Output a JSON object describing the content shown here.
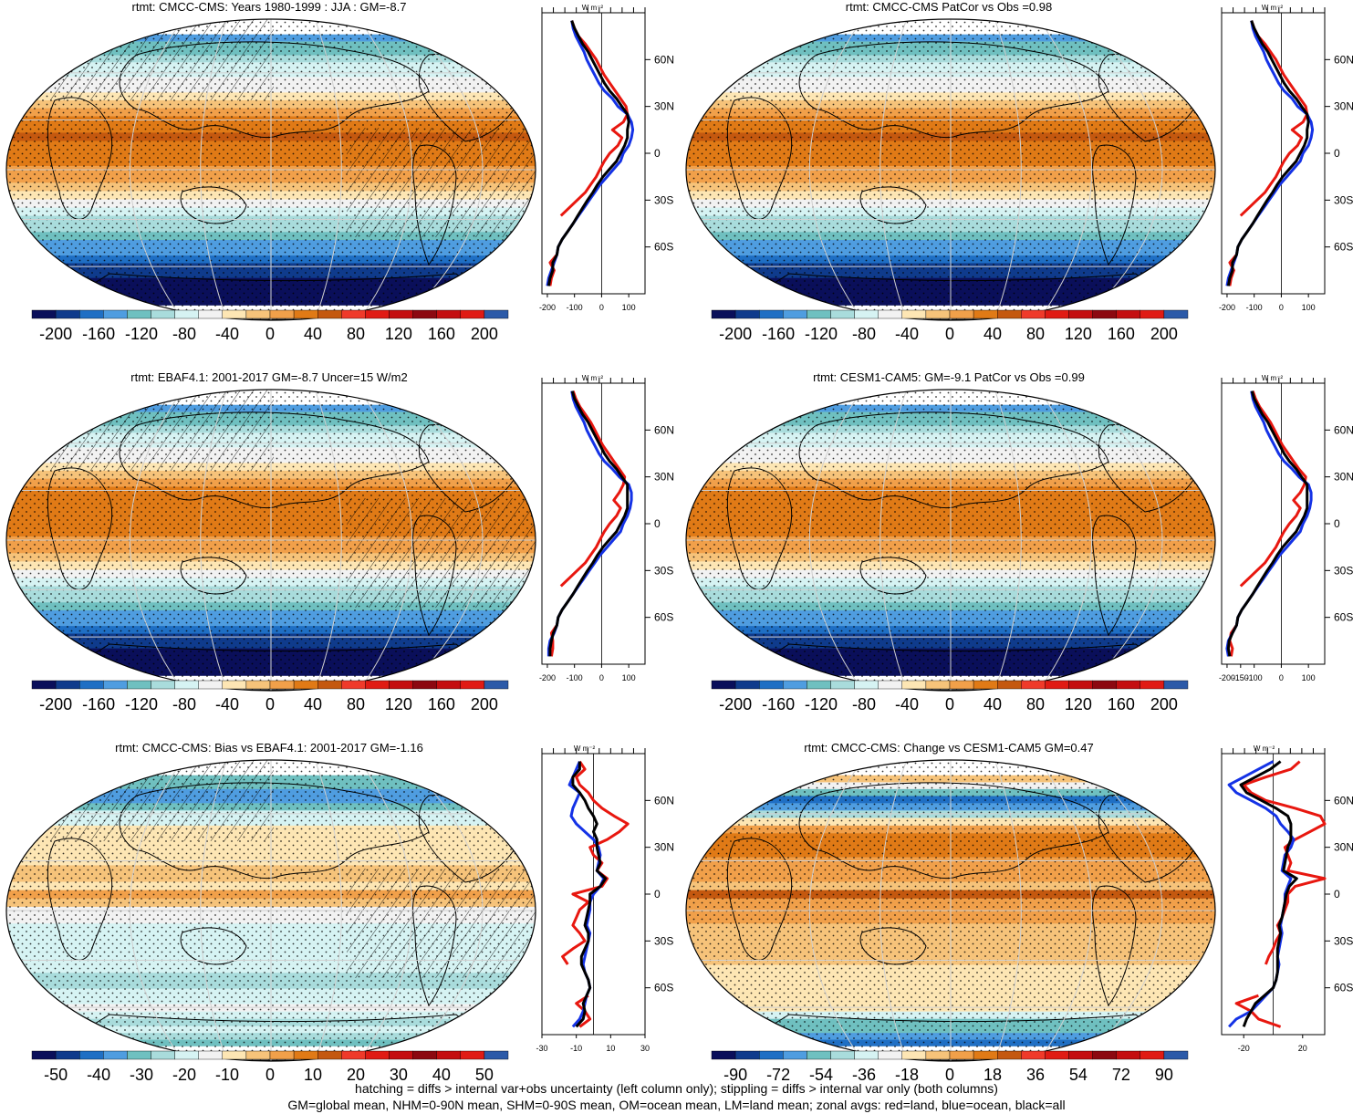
{
  "footer": {
    "line1": "hatching = diffs > internal var+obs uncertainty (left column only); stippling = diffs > internal var only (both columns)",
    "line2": "GM=global mean, NHM=0-90N mean, SHM=0-90S mean, OM=ocean mean, LM=land mean; zonal avgs: red=land, blue=ocean, black=all"
  },
  "colors": {
    "land": "#e8170f",
    "ocean": "#1432e6",
    "all": "#000000",
    "abs_scale": [
      "#0a0f5a",
      "#0f3b8c",
      "#1f6fc4",
      "#4f9de0",
      "#6fc0c0",
      "#a9dcdc",
      "#d6f3f3",
      "#f2f2f2",
      "#fde6b4",
      "#f6c37a",
      "#f1a04a",
      "#e07a16",
      "#c4580f",
      "#ef3a2a",
      "#e01b14",
      "#c40e10",
      "#8c0810",
      "#c40e10",
      "#e01b14",
      "#2c5aa8"
    ],
    "diff_scale": [
      "#0a0f5a",
      "#0f3b8c",
      "#1f6fc4",
      "#4f9de0",
      "#6fc0c0",
      "#a9dcdc",
      "#d6f3f3",
      "#f2f2f2",
      "#fde6b4",
      "#f6c37a",
      "#f1a04a",
      "#e07a16",
      "#c4580f",
      "#ef3a2a",
      "#e01b14",
      "#c40e10",
      "#8c0810",
      "#c40e10",
      "#e01b14",
      "#2c5aa8"
    ]
  },
  "profile": {
    "unit": "W m⁻²",
    "lat_labels": [
      "60N",
      "30N",
      "0",
      "30S",
      "60S"
    ],
    "lat_values": [
      60,
      30,
      0,
      -30,
      -60
    ]
  },
  "chart_data": [
    {
      "type": "heatmap",
      "title": "rtmt: CMCC-CMS: Years 1980-1999 : JJA : GM=-8.7",
      "colorbar_labels": [
        "-200",
        "-160",
        "-120",
        "-80",
        "-40",
        "0",
        "40",
        "80",
        "120",
        "160",
        "200"
      ],
      "profile_xticks": [
        "-200",
        "-100",
        "0",
        "100"
      ],
      "profile_xvals": [
        -200,
        -100,
        0,
        100
      ],
      "profile_xlim": [
        -220,
        160
      ],
      "hatching": true,
      "lat": [
        -85,
        -80,
        -75,
        -70,
        -65,
        -60,
        -55,
        -50,
        -45,
        -40,
        -35,
        -30,
        -25,
        -20,
        -15,
        -10,
        -5,
        0,
        5,
        10,
        15,
        20,
        25,
        30,
        35,
        40,
        45,
        50,
        55,
        60,
        65,
        70,
        75,
        80,
        85
      ],
      "series": [
        {
          "name": "land",
          "values": [
            -190,
            -185,
            -175,
            -190,
            -165,
            null,
            null,
            null,
            null,
            -150,
            -120,
            -90,
            -60,
            -40,
            -20,
            -5,
            10,
            30,
            60,
            75,
            40,
            80,
            95,
            90,
            70,
            50,
            30,
            10,
            -5,
            -20,
            -40,
            -60,
            -85,
            -100,
            -110
          ]
        },
        {
          "name": "ocean",
          "values": [
            -200,
            -195,
            -185,
            -175,
            -165,
            -160,
            -145,
            -125,
            -105,
            -85,
            -65,
            -45,
            -25,
            -5,
            20,
            45,
            70,
            80,
            100,
            110,
            115,
            110,
            95,
            60,
            40,
            10,
            -10,
            -25,
            -40,
            -55,
            -65,
            -80,
            -95,
            -105,
            -110
          ]
        },
        {
          "name": "all",
          "values": [
            -195,
            -190,
            -180,
            -180,
            -165,
            -160,
            -145,
            -125,
            -105,
            -88,
            -70,
            -52,
            -32,
            -15,
            5,
            30,
            55,
            70,
            85,
            95,
            95,
            100,
            95,
            75,
            55,
            30,
            10,
            -5,
            -20,
            -35,
            -50,
            -70,
            -85,
            -100,
            -110
          ]
        }
      ]
    },
    {
      "type": "heatmap",
      "title": "rtmt: CMCC-CMS PatCor vs Obs =0.98",
      "colorbar_labels": [
        "-200",
        "-160",
        "-120",
        "-80",
        "-40",
        "0",
        "40",
        "80",
        "120",
        "160",
        "200"
      ],
      "profile_xticks": [
        "-200",
        "-100",
        "0",
        "100"
      ],
      "profile_xvals": [
        -200,
        -100,
        0,
        100
      ],
      "profile_xlim": [
        -220,
        160
      ],
      "hatching": false,
      "lat": [
        -85,
        -80,
        -75,
        -70,
        -65,
        -60,
        -55,
        -50,
        -45,
        -40,
        -35,
        -30,
        -25,
        -20,
        -15,
        -10,
        -5,
        0,
        5,
        10,
        15,
        20,
        25,
        30,
        35,
        40,
        45,
        50,
        55,
        60,
        65,
        70,
        75,
        80,
        85
      ],
      "series": [
        {
          "name": "land",
          "values": [
            -190,
            -185,
            -175,
            -190,
            -165,
            null,
            null,
            null,
            null,
            -150,
            -120,
            -90,
            -60,
            -40,
            -20,
            -5,
            10,
            30,
            60,
            75,
            40,
            80,
            95,
            90,
            70,
            50,
            30,
            10,
            -5,
            -20,
            -40,
            -60,
            -85,
            -100,
            -110
          ]
        },
        {
          "name": "ocean",
          "values": [
            -200,
            -195,
            -185,
            -175,
            -165,
            -160,
            -145,
            -125,
            -105,
            -85,
            -65,
            -45,
            -25,
            -5,
            20,
            45,
            70,
            80,
            100,
            110,
            115,
            110,
            95,
            60,
            40,
            10,
            -10,
            -25,
            -40,
            -55,
            -65,
            -80,
            -95,
            -105,
            -110
          ]
        },
        {
          "name": "all",
          "values": [
            -195,
            -190,
            -180,
            -180,
            -165,
            -160,
            -145,
            -125,
            -105,
            -88,
            -70,
            -52,
            -32,
            -15,
            5,
            30,
            55,
            70,
            85,
            95,
            95,
            100,
            95,
            75,
            55,
            30,
            10,
            -5,
            -20,
            -35,
            -50,
            -70,
            -85,
            -100,
            -110
          ]
        }
      ]
    },
    {
      "type": "heatmap",
      "title": "rtmt: EBAF4.1: 2001-2017 GM=-8.7 Uncer=15 W/m2",
      "colorbar_labels": [
        "-200",
        "-160",
        "-120",
        "-80",
        "-40",
        "0",
        "40",
        "80",
        "120",
        "160",
        "200"
      ],
      "profile_xticks": [
        "-200",
        "-100",
        "0",
        "100"
      ],
      "profile_xvals": [
        -200,
        -100,
        0,
        100
      ],
      "profile_xlim": [
        -220,
        160
      ],
      "hatching": true,
      "lat": [
        -85,
        -80,
        -75,
        -70,
        -65,
        -60,
        -55,
        -50,
        -45,
        -40,
        -35,
        -30,
        -25,
        -20,
        -15,
        -10,
        -5,
        0,
        5,
        10,
        15,
        20,
        25,
        30,
        35,
        40,
        45,
        50,
        55,
        60,
        65,
        70,
        75,
        80,
        85
      ],
      "series": [
        {
          "name": "land",
          "values": [
            -185,
            -180,
            -180,
            -185,
            -165,
            null,
            null,
            null,
            null,
            -150,
            -120,
            -90,
            -60,
            -40,
            -20,
            -5,
            10,
            30,
            55,
            70,
            45,
            65,
            80,
            85,
            65,
            45,
            25,
            5,
            -10,
            -25,
            -40,
            -60,
            -80,
            -95,
            -105
          ]
        },
        {
          "name": "ocean",
          "values": [
            -195,
            -195,
            -190,
            -175,
            -165,
            -160,
            -145,
            -125,
            -105,
            -85,
            -65,
            -45,
            -25,
            -5,
            20,
            45,
            70,
            80,
            95,
            105,
            110,
            110,
            100,
            65,
            40,
            10,
            -10,
            -25,
            -40,
            -55,
            -65,
            -80,
            -95,
            -105,
            -110
          ]
        },
        {
          "name": "all",
          "values": [
            -190,
            -190,
            -185,
            -178,
            -165,
            -160,
            -145,
            -125,
            -105,
            -88,
            -70,
            -52,
            -32,
            -15,
            5,
            30,
            55,
            70,
            85,
            95,
            95,
            95,
            95,
            75,
            55,
            30,
            10,
            -5,
            -20,
            -35,
            -50,
            -70,
            -85,
            -100,
            -108
          ]
        }
      ]
    },
    {
      "type": "heatmap",
      "title": "rtmt: CESM1-CAM5: GM=-9.1 PatCor vs Obs =0.99",
      "colorbar_labels": [
        "-200",
        "-160",
        "-120",
        "-80",
        "-40",
        "0",
        "40",
        "80",
        "120",
        "160",
        "200"
      ],
      "profile_xticks": [
        "-200",
        "-150",
        "-100",
        "0",
        "100"
      ],
      "profile_xvals": [
        -200,
        -150,
        -100,
        0,
        100
      ],
      "profile_xlim": [
        -220,
        160
      ],
      "hatching": false,
      "lat": [
        -85,
        -80,
        -75,
        -70,
        -65,
        -60,
        -55,
        -50,
        -45,
        -40,
        -35,
        -30,
        -25,
        -20,
        -15,
        -10,
        -5,
        0,
        5,
        10,
        15,
        20,
        25,
        30,
        35,
        40,
        45,
        50,
        55,
        60,
        65,
        70,
        75,
        80,
        85
      ],
      "series": [
        {
          "name": "land",
          "values": [
            -185,
            -180,
            -190,
            -185,
            -165,
            null,
            null,
            null,
            null,
            -150,
            -120,
            -90,
            -60,
            -40,
            -20,
            -5,
            10,
            30,
            55,
            70,
            45,
            70,
            85,
            90,
            65,
            45,
            25,
            5,
            -10,
            -25,
            -40,
            -60,
            -80,
            -95,
            -105
          ]
        },
        {
          "name": "ocean",
          "values": [
            -195,
            -200,
            -195,
            -180,
            -165,
            -160,
            -145,
            -125,
            -105,
            -85,
            -65,
            -45,
            -25,
            -5,
            20,
            45,
            70,
            80,
            95,
            105,
            110,
            110,
            100,
            65,
            40,
            10,
            -10,
            -25,
            -40,
            -55,
            -65,
            -80,
            -95,
            -105,
            -110
          ]
        },
        {
          "name": "all",
          "values": [
            -190,
            -195,
            -192,
            -180,
            -165,
            -160,
            -145,
            -125,
            -105,
            -88,
            -70,
            -52,
            -32,
            -15,
            5,
            30,
            55,
            70,
            85,
            95,
            95,
            95,
            95,
            75,
            55,
            30,
            10,
            -5,
            -20,
            -35,
            -50,
            -70,
            -85,
            -100,
            -108
          ]
        }
      ]
    },
    {
      "type": "heatmap",
      "title": "rtmt: CMCC-CMS: Bias vs EBAF4.1: 2001-2017 GM=-1.16",
      "colorbar_labels": [
        "-50",
        "-40",
        "-30",
        "-20",
        "-10",
        "0",
        "10",
        "20",
        "30",
        "40",
        "50"
      ],
      "profile_xticks": [
        "-30",
        "-10",
        "10",
        "30"
      ],
      "profile_xvals": [
        -30,
        -10,
        10,
        30
      ],
      "profile_xlim": [
        -30,
        30
      ],
      "hatching": true,
      "lat": [
        -85,
        -80,
        -75,
        -70,
        -65,
        -60,
        -55,
        -50,
        -45,
        -40,
        -35,
        -30,
        -25,
        -20,
        -15,
        -10,
        -5,
        0,
        5,
        10,
        15,
        20,
        25,
        30,
        35,
        40,
        45,
        50,
        55,
        60,
        65,
        70,
        75,
        80,
        85
      ],
      "series": [
        {
          "name": "land",
          "values": [
            -8,
            -2,
            -5,
            -10,
            -3,
            null,
            null,
            null,
            -15,
            -18,
            -12,
            -5,
            -8,
            -12,
            -10,
            -8,
            -3,
            -12,
            5,
            8,
            2,
            5,
            0,
            -2,
            8,
            15,
            20,
            12,
            5,
            0,
            -3,
            -8,
            -10,
            -5,
            -8
          ]
        },
        {
          "name": "ocean",
          "values": [
            -12,
            -8,
            -6,
            -5,
            -4,
            -2,
            -3,
            -5,
            -6,
            -5,
            -4,
            -3,
            -2,
            -4,
            -3,
            -2,
            -2,
            0,
            4,
            6,
            2,
            3,
            4,
            3,
            0,
            -5,
            -10,
            -13,
            -12,
            -10,
            -8,
            -14,
            -12,
            -10,
            -8
          ]
        },
        {
          "name": "all",
          "values": [
            -10,
            -6,
            -5,
            -6,
            -4,
            -2,
            -3,
            -5,
            -7,
            -7,
            -5,
            -3,
            -3,
            -5,
            -4,
            -3,
            -2,
            -2,
            4,
            7,
            2,
            4,
            3,
            2,
            2,
            0,
            2,
            0,
            -3,
            -5,
            -8,
            -12,
            -12,
            -8,
            -8
          ]
        }
      ]
    },
    {
      "type": "heatmap",
      "title": "rtmt: CMCC-CMS: Change vs CESM1-CAM5 GM=0.47",
      "colorbar_labels": [
        "-90",
        "-72",
        "-54",
        "-36",
        "-18",
        "0",
        "18",
        "36",
        "54",
        "72",
        "90"
      ],
      "profile_xticks": [
        "-20",
        "20"
      ],
      "profile_xvals": [
        -20,
        20
      ],
      "profile_xlim": [
        -35,
        35
      ],
      "hatching": false,
      "lat": [
        -85,
        -80,
        -75,
        -70,
        -65,
        -60,
        -55,
        -50,
        -45,
        -40,
        -35,
        -30,
        -25,
        -20,
        -15,
        -10,
        -5,
        0,
        5,
        10,
        15,
        20,
        25,
        30,
        35,
        40,
        45,
        50,
        55,
        60,
        65,
        70,
        75,
        80,
        85
      ],
      "series": [
        {
          "name": "land",
          "values": [
            5,
            -10,
            -15,
            -25,
            -10,
            null,
            null,
            null,
            -5,
            -3,
            0,
            2,
            5,
            3,
            6,
            8,
            10,
            10,
            15,
            35,
            10,
            12,
            10,
            8,
            15,
            25,
            35,
            32,
            15,
            -5,
            -15,
            -20,
            -5,
            12,
            18
          ]
        },
        {
          "name": "ocean",
          "values": [
            -30,
            -25,
            -15,
            -10,
            -5,
            0,
            2,
            3,
            4,
            3,
            4,
            5,
            6,
            5,
            6,
            7,
            8,
            8,
            10,
            12,
            6,
            7,
            8,
            12,
            14,
            10,
            5,
            2,
            -5,
            -15,
            -25,
            -30,
            -20,
            -10,
            0
          ]
        },
        {
          "name": "all",
          "values": [
            -20,
            -18,
            -15,
            -12,
            -6,
            0,
            2,
            3,
            3,
            3,
            3,
            4,
            5,
            4,
            6,
            7,
            8,
            9,
            11,
            16,
            7,
            8,
            9,
            10,
            12,
            12,
            12,
            10,
            2,
            -8,
            -18,
            -22,
            -12,
            -2,
            5
          ]
        }
      ]
    }
  ]
}
